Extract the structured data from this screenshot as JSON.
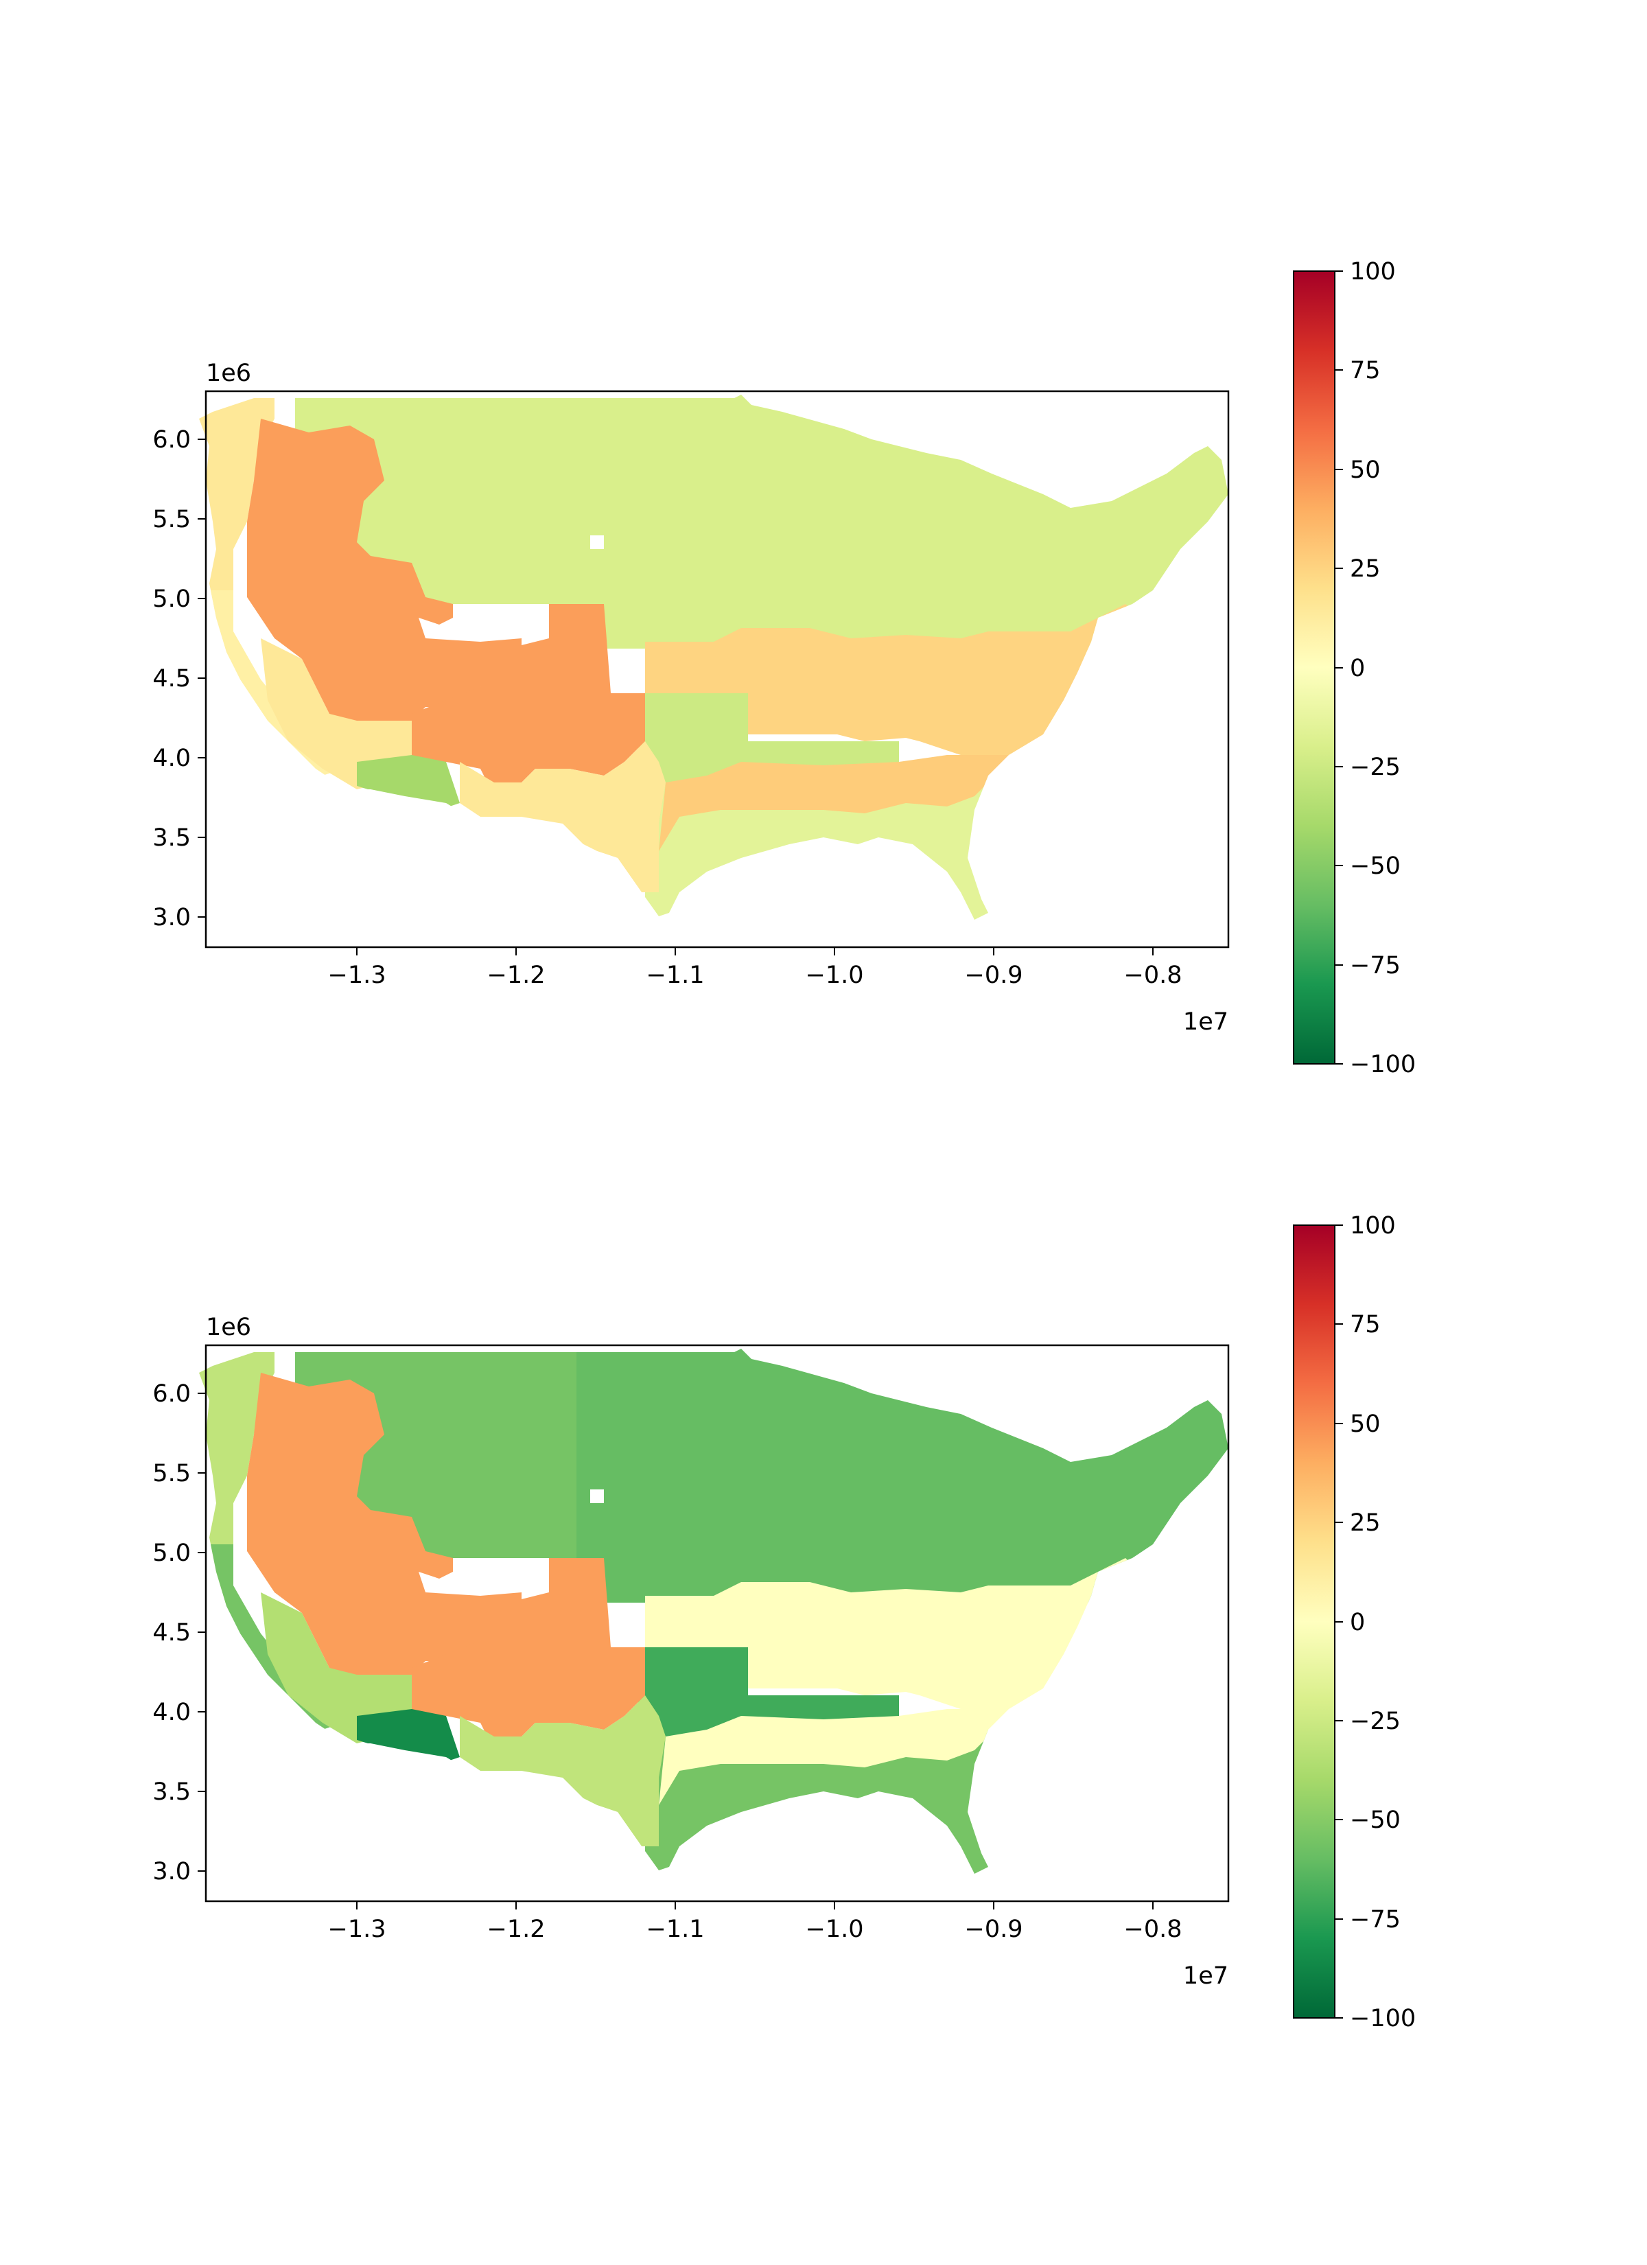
{
  "figure": {
    "panels": [
      {
        "x_offset_text": "1e7",
        "y_offset_text": "1e6",
        "x_ticks": [
          "−1.3",
          "−1.2",
          "−1.1",
          "−1.0",
          "−0.9",
          "−0.8"
        ],
        "y_ticks": [
          "6.0",
          "5.5",
          "5.0",
          "4.5",
          "4.0",
          "3.5",
          "3.0"
        ],
        "colorbar_ticks": [
          "100",
          "75",
          "50",
          "25",
          "0",
          "−25",
          "−50",
          "−75",
          "−100"
        ]
      },
      {
        "x_offset_text": "1e7",
        "y_offset_text": "1e6",
        "x_ticks": [
          "−1.3",
          "−1.2",
          "−1.1",
          "−1.0",
          "−0.9",
          "−0.8"
        ],
        "y_ticks": [
          "6.0",
          "5.5",
          "5.0",
          "4.5",
          "4.0",
          "3.5",
          "3.0"
        ],
        "colorbar_ticks": [
          "100",
          "75",
          "50",
          "25",
          "0",
          "−25",
          "−50",
          "−75",
          "−100"
        ]
      }
    ]
  },
  "chart_data": [
    {
      "type": "choropleth",
      "xlim": [
        -13850000,
        -7500000
      ],
      "ylim": [
        2800000,
        6300000
      ],
      "color_scale": {
        "colormap": "RdYlGn_r",
        "vmin": -100,
        "vmax": 100
      },
      "region_values": {
        "pacific_northwest_coast": 15,
        "great_basin_oregon_nevada": 45,
        "california_coast": 10,
        "southern_california": 15,
        "arizona_sw": -40,
        "four_corners_colorado": 45,
        "new_mexico_west_texas": 15,
        "northern_rockies_plains": -20,
        "upper_midwest_northeast": -20,
        "central_band": 25,
        "texas_oklahoma": -25,
        "southern_band": 28,
        "gulf_coast_southeast": -15
      }
    },
    {
      "type": "choropleth",
      "xlim": [
        -13850000,
        -7500000
      ],
      "ylim": [
        2800000,
        6300000
      ],
      "color_scale": {
        "colormap": "RdYlGn_r",
        "vmin": -100,
        "vmax": 100
      },
      "region_values": {
        "pacific_northwest_coast": -30,
        "great_basin_oregon_nevada": 45,
        "california_coast": -55,
        "southern_california": -35,
        "arizona_sw": -85,
        "four_corners_colorado": 45,
        "new_mexico_west_texas": -30,
        "northern_rockies_plains": -55,
        "upper_midwest_northeast": -60,
        "central_band": 0,
        "texas_oklahoma": -70,
        "southern_band": 0,
        "gulf_coast_southeast": -55
      }
    }
  ]
}
